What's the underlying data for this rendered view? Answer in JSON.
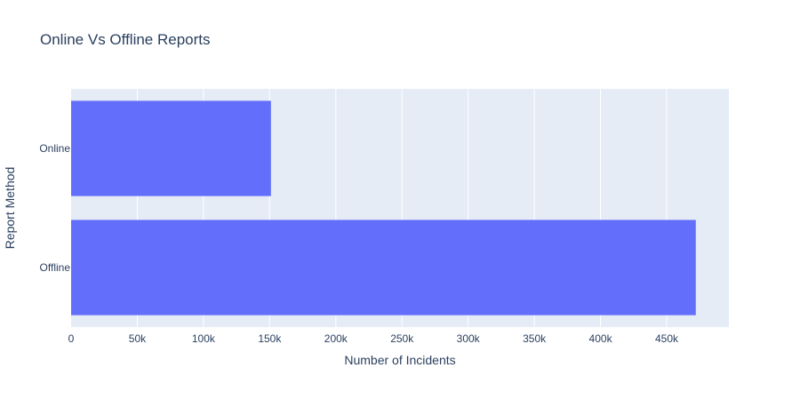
{
  "chart_data": {
    "type": "bar",
    "orientation": "horizontal",
    "title": "Online Vs Offline Reports",
    "xlabel": "Number of Incidents",
    "ylabel": "Report Method",
    "categories": [
      "Offline",
      "Online"
    ],
    "values": [
      472000,
      151000
    ],
    "xlim": [
      0,
      497000
    ],
    "xticks": [
      0,
      50000,
      100000,
      150000,
      200000,
      250000,
      300000,
      350000,
      400000,
      450000
    ],
    "xtick_labels": [
      "0",
      "50k",
      "100k",
      "150k",
      "200k",
      "250k",
      "300k",
      "350k",
      "400k",
      "450k"
    ],
    "grid": true,
    "colors": {
      "bar": "#636efa",
      "plot_bg": "#e5ecf6",
      "grid": "#ffffff",
      "text": "#2a3f5f"
    }
  }
}
